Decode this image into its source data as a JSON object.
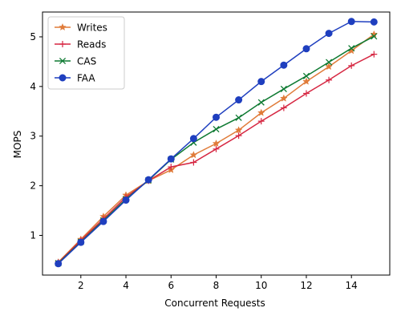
{
  "chart_data": {
    "type": "line",
    "title": "",
    "xlabel": "Concurrent Requests",
    "ylabel": "MOPS",
    "xlim": [
      0.3,
      15.7
    ],
    "ylim": [
      0.2,
      5.5
    ],
    "xticks": [
      2,
      4,
      6,
      8,
      10,
      12,
      14
    ],
    "xtick_labels": [
      "2",
      "4",
      "6",
      "8",
      "10",
      "12",
      "14"
    ],
    "yticks": [
      1,
      2,
      3,
      4,
      5
    ],
    "ytick_labels": [
      "1",
      "2",
      "3",
      "4",
      "5"
    ],
    "grid": false,
    "legend_position": "top-left",
    "x": [
      1,
      2,
      3,
      4,
      5,
      6,
      7,
      8,
      9,
      10,
      11,
      12,
      13,
      14,
      15
    ],
    "series": [
      {
        "name": "Writes",
        "color": "#e07b39",
        "marker": "star",
        "values": [
          0.46,
          0.92,
          1.38,
          1.81,
          2.1,
          2.32,
          2.62,
          2.85,
          3.12,
          3.47,
          3.76,
          4.1,
          4.4,
          4.72,
          5.05
        ]
      },
      {
        "name": "Reads",
        "color": "#d62742",
        "marker": "plus",
        "values": [
          0.45,
          0.9,
          1.33,
          1.77,
          2.1,
          2.38,
          2.47,
          2.74,
          3.01,
          3.3,
          3.57,
          3.86,
          4.13,
          4.42,
          4.65
        ]
      },
      {
        "name": "CAS",
        "color": "#0e7a32",
        "marker": "x",
        "values": [
          0.44,
          0.87,
          1.3,
          1.73,
          2.11,
          2.53,
          2.87,
          3.14,
          3.37,
          3.68,
          3.95,
          4.21,
          4.49,
          4.77,
          5.01
        ]
      },
      {
        "name": "FAA",
        "color": "#1f3fbf",
        "marker": "circle",
        "values": [
          0.43,
          0.86,
          1.28,
          1.71,
          2.12,
          2.54,
          2.95,
          3.38,
          3.73,
          4.1,
          4.43,
          4.76,
          5.07,
          5.31,
          5.3
        ]
      }
    ]
  }
}
